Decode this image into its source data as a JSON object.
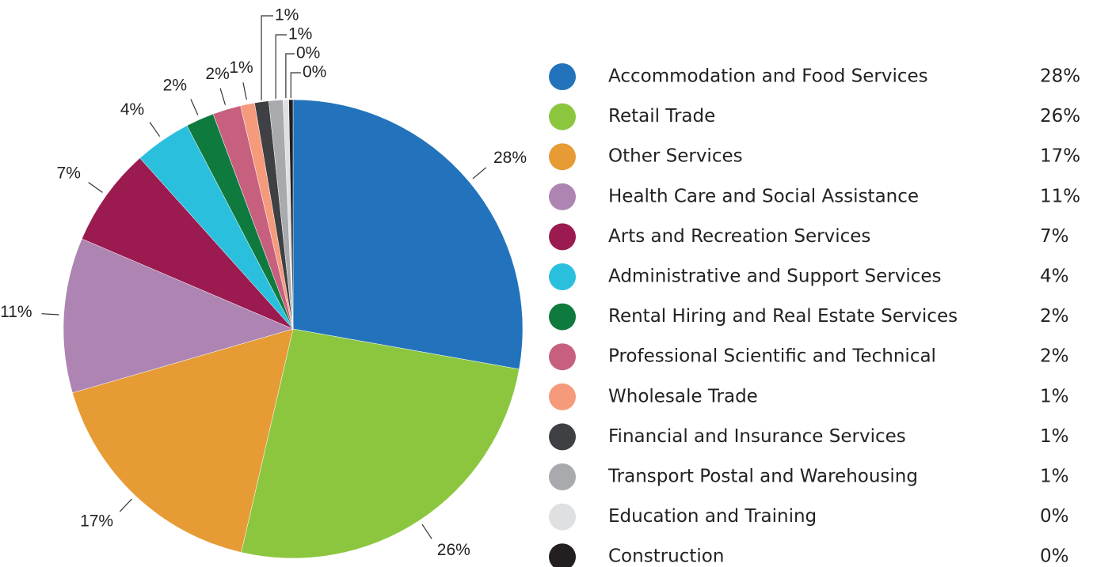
{
  "chart_data": {
    "type": "pie",
    "categories": [
      "Accommodation and Food Services",
      "Retail Trade",
      "Other Services",
      "Health Care and Social Assistance",
      "Arts and Recreation Services",
      "Administrative and Support Services",
      "Rental Hiring and Real Estate Services",
      "Professional Scientific and Technical",
      "Wholesale Trade",
      "Financial and Insurance Services",
      "Transport Postal and Warehousing",
      "Education and Training",
      "Construction"
    ],
    "values": [
      28,
      26,
      17,
      11,
      7,
      4,
      2,
      2,
      1,
      1,
      1,
      0.4,
      0.3
    ],
    "value_labels": [
      "28%",
      "26%",
      "17%",
      "11%",
      "7%",
      "4%",
      "2%",
      "2%",
      "1%",
      "1%",
      "1%",
      "0%",
      "0%"
    ],
    "colors": [
      "#2273bb",
      "#8cc63f",
      "#e69b35",
      "#ad84b2",
      "#9b1b50",
      "#2bbfde",
      "#0f7a3e",
      "#c7607f",
      "#f59a7a",
      "#3f4043",
      "#a9aaad",
      "#dfe0e2",
      "#231f20"
    ],
    "legend": "right"
  }
}
